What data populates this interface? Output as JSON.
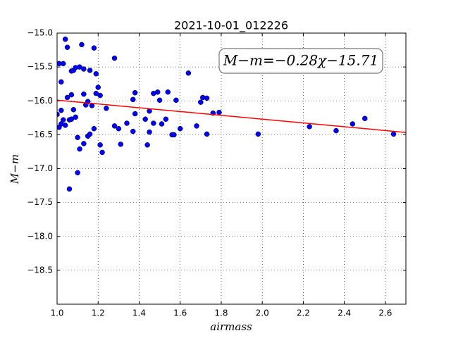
{
  "chart_data": {
    "type": "scatter",
    "title": "2021-10-01_012226",
    "x_label": "airmass",
    "y_label": "M−m",
    "annotation": "M−m=−0.28χ−15.71",
    "x": [
      1.0,
      1.01,
      1.01,
      1.02,
      1.02,
      1.02,
      1.03,
      1.03,
      1.04,
      1.04,
      1.05,
      1.05,
      1.06,
      1.06,
      1.07,
      1.07,
      1.07,
      1.08,
      1.08,
      1.09,
      1.09,
      1.1,
      1.1,
      1.11,
      1.11,
      1.12,
      1.13,
      1.13,
      1.13,
      1.14,
      1.15,
      1.15,
      1.16,
      1.16,
      1.17,
      1.18,
      1.18,
      1.19,
      1.19,
      1.2,
      1.21,
      1.21,
      1.22,
      1.24,
      1.28,
      1.28,
      1.3,
      1.31,
      1.34,
      1.37,
      1.37,
      1.38,
      1.38,
      1.43,
      1.44,
      1.45,
      1.45,
      1.47,
      1.47,
      1.49,
      1.5,
      1.51,
      1.53,
      1.54,
      1.56,
      1.58,
      1.57,
      1.6,
      1.64,
      1.68,
      1.7,
      1.71,
      1.73,
      1.73,
      1.76,
      1.79,
      1.98,
      2.23,
      2.36,
      2.44,
      2.5,
      2.64
    ],
    "values": [
      -16.2,
      -15.45,
      -16.39,
      -15.72,
      -16.14,
      -16.34,
      -15.45,
      -16.28,
      -16.36,
      -15.09,
      -15.21,
      -15.95,
      -16.28,
      -17.3,
      -15.91,
      -15.56,
      -16.27,
      -15.55,
      -16.13,
      -15.51,
      -16.24,
      -17.06,
      -16.54,
      -16.71,
      -15.5,
      -15.17,
      -15.9,
      -16.63,
      -15.53,
      -16.06,
      -16.52,
      -16.01,
      -16.49,
      -15.55,
      -16.07,
      -15.22,
      -16.41,
      -15.89,
      -15.6,
      -15.8,
      -16.65,
      -15.92,
      -16.76,
      -16.11,
      -15.37,
      -16.37,
      -16.41,
      -16.64,
      -16.33,
      -15.98,
      -16.45,
      -15.88,
      -16.19,
      -16.27,
      -16.65,
      -16.46,
      -16.15,
      -16.33,
      -15.89,
      -15.87,
      -15.99,
      -16.34,
      -16.27,
      -15.87,
      -16.5,
      -15.99,
      -16.5,
      -16.41,
      -15.59,
      -16.37,
      -16.02,
      -15.95,
      -15.96,
      -16.49,
      -16.18,
      -16.17,
      -16.49,
      -16.38,
      -16.44,
      -16.34,
      -16.26,
      -16.49
    ],
    "color": "#0000ff",
    "fit_line": {
      "x": [
        1.0,
        2.7
      ],
      "values": [
        -15.99,
        -16.466
      ],
      "color": "#ff0000"
    },
    "xlim": [
      1.0,
      2.7
    ],
    "ylim": [
      -19.0,
      -15.0
    ],
    "y_inverted": true,
    "xticks": [
      {
        "value": 1.0,
        "label": "1.0"
      },
      1.2,
      1.4,
      1.6,
      1.8,
      {
        "value": 2.0,
        "label": "2.0"
      },
      2.2,
      2.4,
      2.6
    ],
    "yticks": [
      {
        "value": -15.0,
        "label": "−15.0"
      },
      {
        "value": -15.5,
        "label": "−15.5"
      },
      {
        "value": -16.0,
        "label": "−16.0"
      },
      {
        "value": -16.5,
        "label": "−16.5"
      },
      {
        "value": -17.0,
        "label": "−17.0"
      },
      {
        "value": -17.5,
        "label": "−17.5"
      },
      {
        "value": -18.0,
        "label": "−18.0"
      },
      {
        "value": -18.5,
        "label": "−18.5"
      }
    ],
    "grid": true
  }
}
